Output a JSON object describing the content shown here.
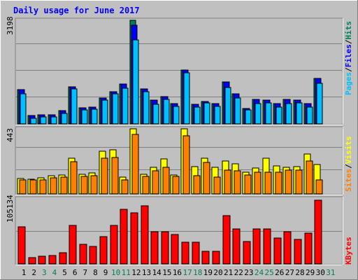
{
  "title": "Daily usage for June 2017",
  "colors": {
    "background": "#C0C0C0",
    "hits": "#00805C",
    "files": "#0000FF",
    "pages": "#00C0FF",
    "visits": "#FFFF00",
    "sites": "#FF8000",
    "kbytes": "#FF0000",
    "title_text": "#0000FF",
    "weekend_label": "#00805C",
    "weekday_label": "#000000"
  },
  "chart_data": [
    {
      "type": "bar",
      "panel": "hits-files-pages",
      "ymax_label": "3198",
      "ylim": [
        0,
        3198
      ],
      "grid": true,
      "side_label": [
        "Pages",
        "Files",
        "Hits"
      ],
      "categories": [
        "1",
        "2",
        "3",
        "4",
        "5",
        "6",
        "7",
        "8",
        "9",
        "10",
        "11",
        "12",
        "13",
        "14",
        "15",
        "16",
        "17",
        "18",
        "19",
        "20",
        "21",
        "22",
        "23",
        "24",
        "25",
        "26",
        "27",
        "28",
        "29",
        "30",
        "31"
      ],
      "series": [
        {
          "name": "Hits",
          "values": [
            1050,
            260,
            290,
            290,
            410,
            1150,
            500,
            520,
            790,
            1000,
            1240,
            3198,
            1080,
            730,
            850,
            630,
            1660,
            600,
            700,
            630,
            1290,
            930,
            480,
            750,
            740,
            620,
            750,
            740,
            620,
            1400,
            0
          ]
        },
        {
          "name": "Files",
          "values": [
            1050,
            260,
            290,
            290,
            410,
            1150,
            500,
            520,
            790,
            1000,
            1240,
            3050,
            1080,
            730,
            850,
            630,
            1660,
            600,
            700,
            630,
            1290,
            930,
            480,
            750,
            740,
            620,
            750,
            740,
            620,
            1400,
            0
          ]
        },
        {
          "name": "Pages",
          "values": [
            930,
            180,
            210,
            210,
            330,
            1080,
            430,
            450,
            730,
            930,
            1100,
            2600,
            1000,
            600,
            750,
            550,
            1580,
            520,
            650,
            550,
            1130,
            800,
            430,
            620,
            640,
            520,
            630,
            650,
            520,
            1260,
            0
          ]
        }
      ]
    },
    {
      "type": "bar",
      "panel": "visits-sites",
      "ymax_label": "443",
      "ylim": [
        0,
        443
      ],
      "grid": true,
      "side_label": [
        "Sites",
        "Visits"
      ],
      "categories": [
        "1",
        "2",
        "3",
        "4",
        "5",
        "6",
        "7",
        "8",
        "9",
        "10",
        "11",
        "12",
        "13",
        "14",
        "15",
        "16",
        "17",
        "18",
        "19",
        "20",
        "21",
        "22",
        "23",
        "24",
        "25",
        "26",
        "27",
        "28",
        "29",
        "30",
        "31"
      ],
      "series": [
        {
          "name": "Visits",
          "values": [
            105,
            100,
            110,
            125,
            130,
            245,
            135,
            145,
            290,
            300,
            115,
            443,
            135,
            180,
            240,
            130,
            443,
            185,
            245,
            180,
            225,
            205,
            150,
            175,
            245,
            190,
            180,
            185,
            270,
            200,
            0
          ]
        },
        {
          "name": "Sites",
          "values": [
            95,
            95,
            95,
            110,
            115,
            220,
            120,
            125,
            245,
            250,
            95,
            405,
            120,
            155,
            180,
            120,
            395,
            125,
            215,
            115,
            160,
            155,
            130,
            150,
            150,
            150,
            160,
            160,
            225,
            95,
            0
          ]
        }
      ]
    },
    {
      "type": "bar",
      "panel": "kbytes",
      "ymax_label": "105134",
      "ylim": [
        0,
        105134
      ],
      "grid": true,
      "side_label": [
        "KBytes"
      ],
      "categories": [
        "1",
        "2",
        "3",
        "4",
        "5",
        "6",
        "7",
        "8",
        "9",
        "10",
        "11",
        "12",
        "13",
        "14",
        "15",
        "16",
        "17",
        "18",
        "19",
        "20",
        "21",
        "22",
        "23",
        "24",
        "25",
        "26",
        "27",
        "28",
        "29",
        "30",
        "31"
      ],
      "series": [
        {
          "name": "KBytes",
          "values": [
            60000,
            10000,
            12000,
            14000,
            18000,
            62000,
            32000,
            28000,
            44000,
            62000,
            88000,
            82000,
            94000,
            52000,
            52000,
            48000,
            35000,
            35000,
            20000,
            20000,
            78000,
            56000,
            36000,
            56000,
            56000,
            42000,
            52000,
            40000,
            50000,
            103000,
            0
          ]
        }
      ]
    }
  ],
  "x_axis": {
    "labels": [
      "1",
      "2",
      "3",
      "4",
      "5",
      "6",
      "7",
      "8",
      "9",
      "10",
      "11",
      "12",
      "13",
      "14",
      "15",
      "16",
      "17",
      "18",
      "19",
      "20",
      "21",
      "22",
      "23",
      "24",
      "25",
      "26",
      "27",
      "28",
      "29",
      "30",
      "31"
    ],
    "weekend_days": [
      "3",
      "4",
      "10",
      "11",
      "17",
      "18",
      "24",
      "25",
      "31"
    ]
  }
}
